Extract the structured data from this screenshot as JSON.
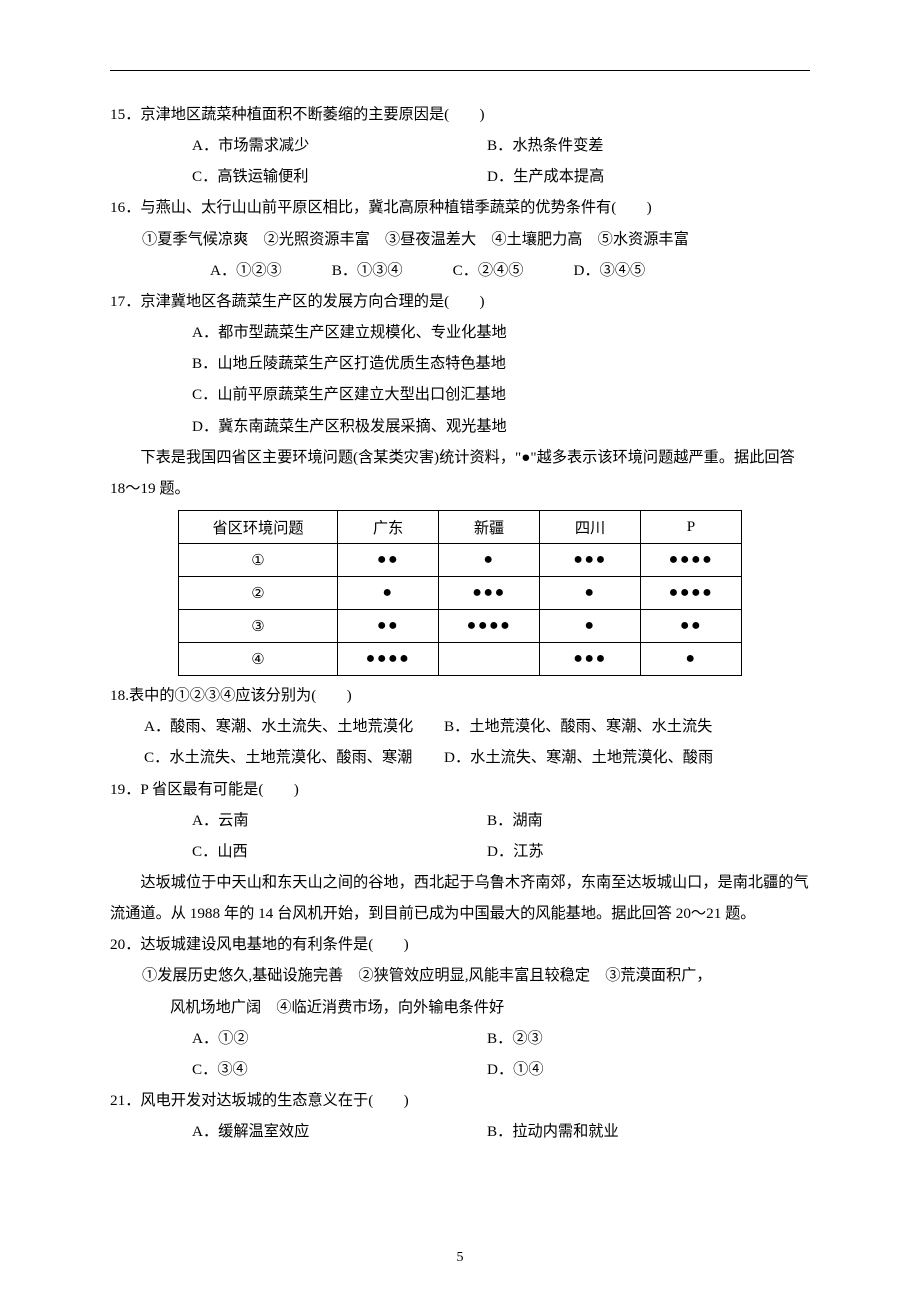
{
  "page_number": "5",
  "q15": {
    "stem": "15．京津地区蔬菜种植面积不断萎缩的主要原因是(　　)",
    "A": "A．市场需求减少",
    "B": "B．水热条件变差",
    "C": "C．高铁运输便利",
    "D": "D．生产成本提高"
  },
  "q16": {
    "stem": "16．与燕山、太行山山前平原区相比，冀北高原种植错季蔬菜的优势条件有(　　)",
    "conds": "①夏季气候凉爽　②光照资源丰富　③昼夜温差大　④土壤肥力高　⑤水资源丰富",
    "A": "A．①②③",
    "B": "B．①③④",
    "C": "C．②④⑤",
    "D": "D．③④⑤"
  },
  "q17": {
    "stem": "17．京津冀地区各蔬菜生产区的发展方向合理的是(　　)",
    "A": "A．都市型蔬菜生产区建立规模化、专业化基地",
    "B": "B．山地丘陵蔬菜生产区打造优质生态特色基地",
    "C": "C．山前平原蔬菜生产区建立大型出口创汇基地",
    "D": "D．冀东南蔬菜生产区积极发展采摘、观光基地"
  },
  "passage18": {
    "p1": "下表是我国四省区主要环境问题(含某类灾害)统计资料，\"●\"越多表示该环境问题越严重。据此回答 18～19 题。"
  },
  "table": {
    "headers": [
      "省区环境问题",
      "广东",
      "新疆",
      "四川",
      "P"
    ],
    "row_labels": [
      "①",
      "②",
      "③",
      "④"
    ],
    "dot": "●",
    "cells": [
      [
        2,
        1,
        3,
        4
      ],
      [
        1,
        3,
        1,
        4
      ],
      [
        2,
        4,
        1,
        2
      ],
      [
        4,
        0,
        3,
        1
      ]
    ]
  },
  "q18": {
    "stem": "18.表中的①②③④应该分别为(　　)",
    "A": "A．酸雨、寒潮、水土流失、土地荒漠化",
    "B": "B．土地荒漠化、酸雨、寒潮、水土流失",
    "C": "C．水土流失、土地荒漠化、酸雨、寒潮",
    "D": "D．水土流失、寒潮、土地荒漠化、酸雨"
  },
  "q19": {
    "stem": "19．P 省区最有可能是(　　)",
    "A": "A．云南",
    "B": "B．湖南",
    "C": "C．山西",
    "D": "D．江苏"
  },
  "passage20": {
    "p1": "达坂城位于中天山和东天山之间的谷地，西北起于乌鲁木齐南郊，东南至达坂城山口，是南北疆的气流通道。从 1988 年的 14 台风机开始，到目前已成为中国最大的风能基地。据此回答 20～21 题。"
  },
  "q20": {
    "stem": "20．达坂城建设风电基地的有利条件是(　　)",
    "conds1": "①发展历史悠久,基础设施完善　②狭管效应明显,风能丰富且较稳定　③荒漠面积广，",
    "conds2": "风机场地广阔　④临近消费市场，向外输电条件好",
    "A": "A．①②",
    "B": "B．②③",
    "C": "C．③④",
    "D": "D．①④"
  },
  "q21": {
    "stem": "21．风电开发对达坂城的生态意义在于(　　)",
    "A": "A．缓解温室效应",
    "B": "B．拉动内需和就业"
  }
}
